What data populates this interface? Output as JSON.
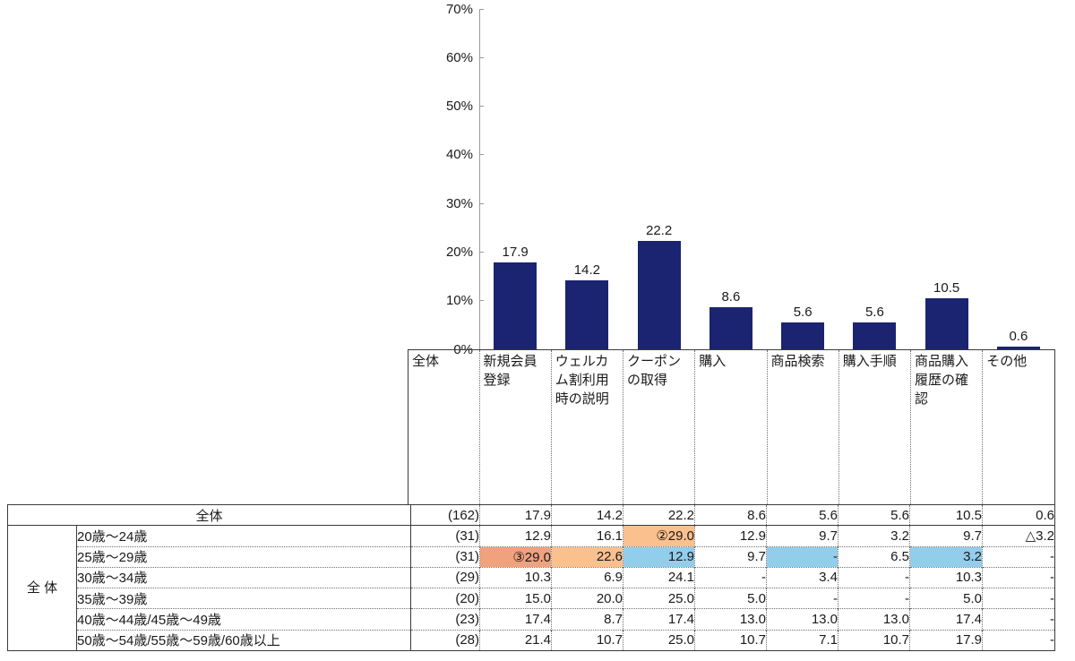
{
  "chart_data": {
    "type": "bar",
    "categories": [
      "新規会員登録",
      "ウェルカム割利用時の説明",
      "クーポンの取得",
      "購入",
      "商品検索",
      "購入手順",
      "商品購入履歴の確認",
      "その他"
    ],
    "values": [
      17.9,
      14.2,
      22.2,
      8.6,
      5.6,
      5.6,
      10.5,
      0.6
    ],
    "value_labels": [
      "17.9",
      "14.2",
      "22.2",
      "8.6",
      "5.6",
      "5.6",
      "10.5",
      "0.6"
    ],
    "title": "",
    "xlabel": "",
    "ylabel": "",
    "ylim": [
      0,
      70
    ],
    "ytick_labels": [
      "0%",
      "10%",
      "20%",
      "30%",
      "40%",
      "50%",
      "60%",
      "70%"
    ],
    "grid": false,
    "legend": false,
    "bar_color": "#1B2470",
    "axis_color": "#9a9a9a"
  },
  "table": {
    "corner_label": "全体",
    "group_label": "全\n体",
    "total_row": {
      "label": "全体",
      "n": "(162)",
      "values": [
        "17.9",
        "14.2",
        "22.2",
        "8.6",
        "5.6",
        "5.6",
        "10.5",
        "0.6"
      ]
    },
    "rows": [
      {
        "label": "20歳〜24歳",
        "n": "(31)",
        "values": [
          "12.9",
          "16.1",
          "②29.0",
          "12.9",
          "9.7",
          "3.2",
          "9.7",
          "△3.2"
        ],
        "highlights": [
          null,
          null,
          "orange",
          null,
          null,
          null,
          null,
          null
        ]
      },
      {
        "label": "25歳〜29歳",
        "n": "(31)",
        "values": [
          "③29.0",
          "22.6",
          "12.9",
          "9.7",
          "-",
          "6.5",
          "3.2",
          "-"
        ],
        "highlights": [
          "salmon",
          "orange",
          "blue",
          null,
          "blue",
          null,
          "blue",
          null
        ]
      },
      {
        "label": "30歳〜34歳",
        "n": "(29)",
        "values": [
          "10.3",
          "6.9",
          "24.1",
          "-",
          "3.4",
          "-",
          "10.3",
          "-"
        ],
        "highlights": [
          null,
          null,
          null,
          null,
          null,
          null,
          null,
          null
        ]
      },
      {
        "label": "35歳〜39歳",
        "n": "(20)",
        "values": [
          "15.0",
          "20.0",
          "25.0",
          "5.0",
          "-",
          "-",
          "5.0",
          "-"
        ],
        "highlights": [
          null,
          null,
          null,
          null,
          null,
          null,
          null,
          null
        ]
      },
      {
        "label": "40歳〜44歳/45歳〜49歳",
        "n": "(23)",
        "values": [
          "17.4",
          "8.7",
          "17.4",
          "13.0",
          "13.0",
          "13.0",
          "17.4",
          "-"
        ],
        "highlights": [
          null,
          null,
          null,
          null,
          null,
          null,
          null,
          null
        ]
      },
      {
        "label": "50歳〜54歳/55歳〜59歳/60歳以上",
        "n": "(28)",
        "values": [
          "21.4",
          "10.7",
          "25.0",
          "10.7",
          "7.1",
          "10.7",
          "17.9",
          "-"
        ],
        "highlights": [
          null,
          null,
          null,
          null,
          null,
          null,
          null,
          null
        ]
      }
    ],
    "highlight_colors": {
      "orange": "#FAC08D",
      "salmon": "#F0A17E",
      "blue": "#93CDEC"
    }
  }
}
